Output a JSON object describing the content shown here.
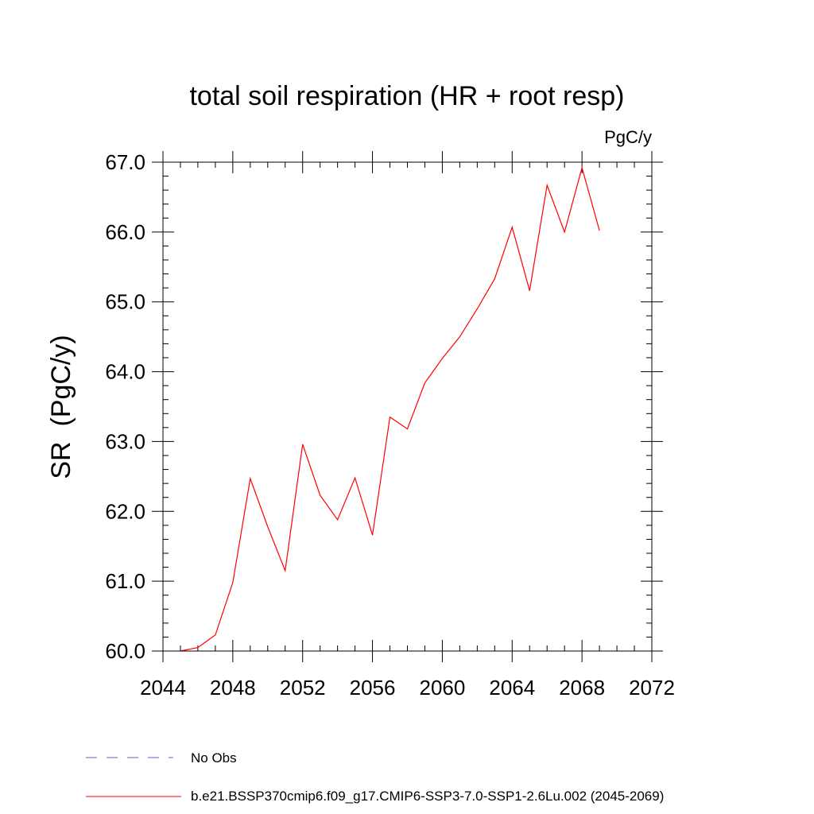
{
  "chart_data": {
    "type": "line",
    "title": "total soil respiration (HR + root resp)",
    "units_label": "PgC/y",
    "ylabel": "SR  (PgC/y)",
    "xlabel": "",
    "xlim": [
      2044,
      2072
    ],
    "ylim": [
      60.0,
      67.0
    ],
    "x_ticks": [
      2044,
      2048,
      2052,
      2056,
      2060,
      2064,
      2068,
      2072
    ],
    "x_tick_labels": [
      "2044",
      "2048",
      "2052",
      "2056",
      "2060",
      "2064",
      "2068",
      "2072"
    ],
    "y_ticks": [
      60.0,
      61.0,
      62.0,
      63.0,
      64.0,
      65.0,
      66.0,
      67.0
    ],
    "y_tick_labels": [
      "60.0",
      "61.0",
      "62.0",
      "63.0",
      "64.0",
      "65.0",
      "66.0",
      "67.0"
    ],
    "x_minor_step": 1,
    "y_minor_step": 0.2,
    "grid": false,
    "legend_position": "bottom",
    "series": [
      {
        "name": "b.e21.BSSP370cmip6.f09_g17.CMIP6-SSP3-7.0-SSP1-2.6Lu.002 (2045-2069)",
        "color": "#ff0000",
        "style": "solid",
        "x": [
          2045,
          2046,
          2047,
          2048,
          2049,
          2050,
          2051,
          2052,
          2053,
          2054,
          2055,
          2056,
          2057,
          2058,
          2059,
          2060,
          2061,
          2062,
          2063,
          2064,
          2065,
          2066,
          2067,
          2068,
          2069
        ],
        "y": [
          60.0,
          60.05,
          60.23,
          60.98,
          62.47,
          61.78,
          61.15,
          62.96,
          62.23,
          61.88,
          62.48,
          61.66,
          63.35,
          63.18,
          63.84,
          64.19,
          64.5,
          64.9,
          65.33,
          66.07,
          65.16,
          66.67,
          66.0,
          66.92,
          66.02
        ]
      }
    ],
    "legend": [
      {
        "label": "No Obs",
        "color": "#6a5acd",
        "style": "dashed"
      },
      {
        "label": "b.e21.BSSP370cmip6.f09_g17.CMIP6-SSP3-7.0-SSP1-2.6Lu.002 (2045-2069)",
        "color": "#ff0000",
        "style": "solid"
      }
    ]
  }
}
